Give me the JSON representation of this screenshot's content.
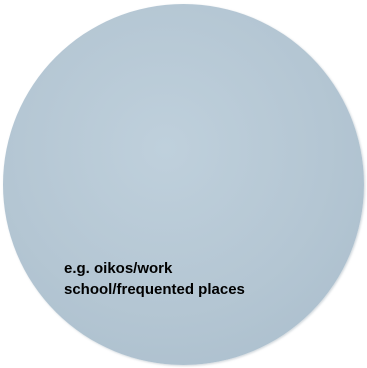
{
  "circle": {
    "fill_color": "#b4c6d3",
    "caption_lines": [
      "e.g. oikos/work",
      "school/frequented places"
    ]
  }
}
